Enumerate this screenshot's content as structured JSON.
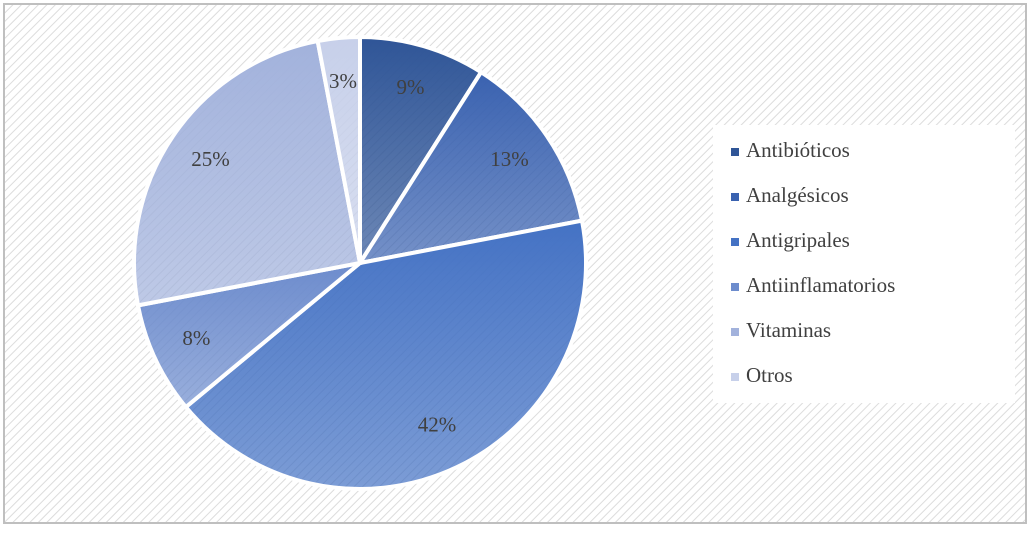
{
  "chart_data": {
    "type": "pie",
    "categories": [
      "Antibióticos",
      "Analgésicos",
      "Antigripales",
      "Antiinflamatorios",
      "Vitaminas",
      "Otros"
    ],
    "values": [
      9,
      13,
      42,
      8,
      25,
      3
    ],
    "value_labels": [
      "9%",
      "13%",
      "42%",
      "8%",
      "25%",
      "3%"
    ],
    "colors": [
      "#2f5597",
      "#3a62b0",
      "#4472c4",
      "#6d8ccd",
      "#a2b2dc",
      "#c7d0ea"
    ],
    "legend": "right"
  }
}
